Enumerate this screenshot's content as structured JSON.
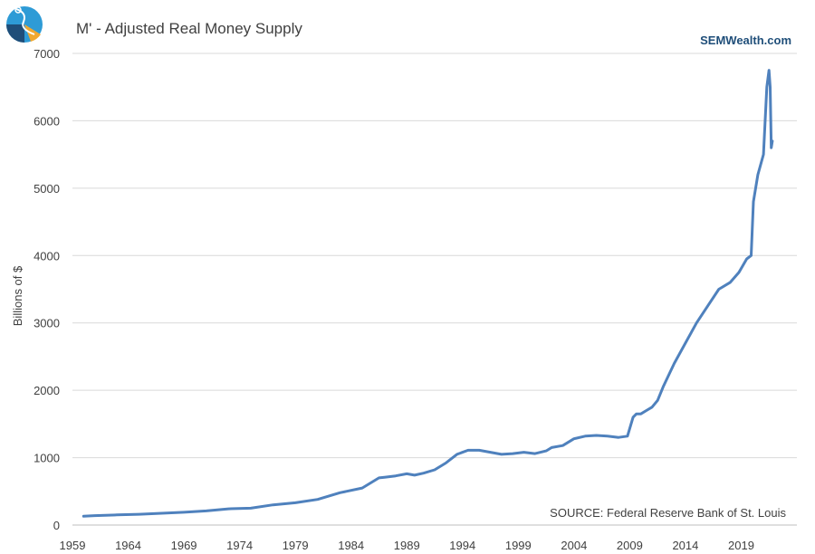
{
  "chart_data": {
    "type": "line",
    "title": "M' - Adjusted Real Money Supply",
    "brand": "SEMWealth.com",
    "source": "SOURCE:  Federal Reserve Bank of St. Louis",
    "xlabel": "",
    "ylabel": "Billions of $",
    "xlim": [
      1959,
      2024
    ],
    "ylim": [
      0,
      7000
    ],
    "xticks": [
      1959,
      1964,
      1969,
      1974,
      1979,
      1984,
      1989,
      1994,
      1999,
      2004,
      2009,
      2014,
      2019
    ],
    "yticks": [
      0,
      1000,
      2000,
      3000,
      4000,
      5000,
      6000,
      7000
    ],
    "grid": true,
    "colors": {
      "series": "#4f81bd",
      "grid": "#d9d9d9",
      "text": "#404040",
      "brand": "#1f4e79"
    },
    "series": [
      {
        "name": "M' - Adjusted Real Money Supply",
        "x": [
          1960.0,
          1961.0,
          1963.0,
          1965.0,
          1967.0,
          1969.0,
          1971.0,
          1973.0,
          1975.0,
          1977.0,
          1979.0,
          1981.0,
          1983.0,
          1985.0,
          1986.5,
          1987.0,
          1988.0,
          1989.0,
          1989.7,
          1990.5,
          1991.5,
          1992.5,
          1993.5,
          1994.5,
          1995.5,
          1996.5,
          1997.5,
          1998.5,
          1999.5,
          2000.5,
          2001.5,
          2002.0,
          2003.0,
          2004.0,
          2005.0,
          2006.0,
          2007.0,
          2008.0,
          2008.8,
          2009.3,
          2009.6,
          2010.0,
          2010.5,
          2011.0,
          2011.5,
          2012.0,
          2013.0,
          2014.0,
          2015.0,
          2016.0,
          2017.0,
          2018.0,
          2018.8,
          2019.5,
          2019.9,
          2020.1,
          2020.5,
          2021.0,
          2021.3,
          2021.5,
          2021.6,
          2021.7,
          2021.8
        ],
        "values": [
          130,
          140,
          150,
          160,
          175,
          190,
          210,
          240,
          250,
          300,
          330,
          380,
          480,
          550,
          700,
          710,
          730,
          760,
          740,
          770,
          820,
          920,
          1050,
          1110,
          1110,
          1080,
          1050,
          1060,
          1080,
          1060,
          1100,
          1150,
          1180,
          1280,
          1320,
          1330,
          1320,
          1300,
          1320,
          1600,
          1650,
          1650,
          1700,
          1750,
          1850,
          2050,
          2400,
          2700,
          3000,
          3250,
          3500,
          3600,
          3750,
          3950,
          4000,
          4800,
          5200,
          5500,
          6500,
          6750,
          6500,
          5600,
          5700
        ]
      }
    ]
  }
}
